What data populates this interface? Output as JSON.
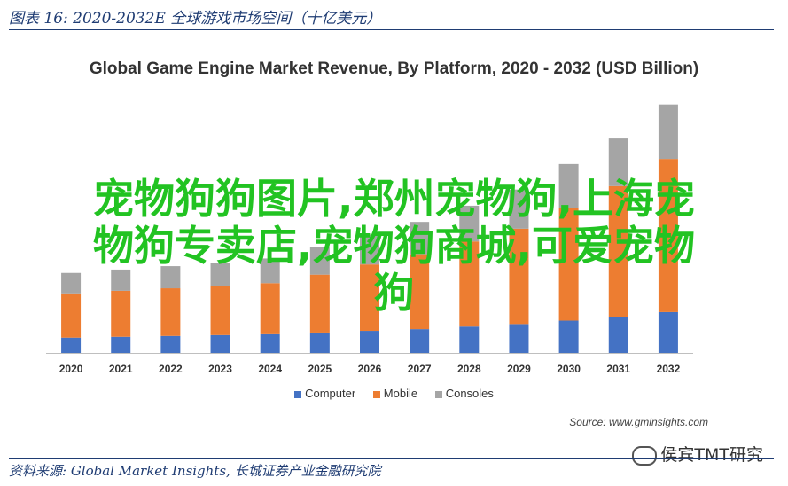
{
  "figure_title": "图表 16:  2020-2032E 全球游戏市场空间（十亿美元）",
  "footer_source": "资料来源:  Global Market Insights,  长城证券产业金融研究院",
  "source_note": "Source: www.gminsights.com",
  "wechat_label": "侯宾TMT研究",
  "overlay_text": [
    "宠物狗狗图片,郑州宠物狗,上海宠",
    "物狗专卖店,宠物狗商城,可爱宠物",
    "狗"
  ],
  "colors": {
    "computer": "#4472c4",
    "mobile": "#ed7d31",
    "consoles": "#a5a5a5",
    "rule": "#1f3c73",
    "overlay": "#22c322"
  },
  "chart_data": {
    "type": "bar",
    "stacked": true,
    "title": "Global Game Engine Market Revenue, By Platform, 2020 - 2032 (USD Billion)",
    "categories": [
      "2020",
      "2021",
      "2022",
      "2023",
      "2024",
      "2025",
      "2026",
      "2027",
      "2028",
      "2029",
      "2030",
      "2031",
      "2032"
    ],
    "series": [
      {
        "name": "Computer",
        "values": [
          0.9,
          0.95,
          1.0,
          1.05,
          1.1,
          1.2,
          1.3,
          1.4,
          1.55,
          1.7,
          1.9,
          2.1,
          2.4
        ]
      },
      {
        "name": "Mobile",
        "values": [
          2.6,
          2.7,
          2.8,
          2.9,
          3.0,
          3.4,
          3.9,
          4.4,
          5.0,
          5.6,
          6.6,
          7.7,
          9.0
        ]
      },
      {
        "name": "Consoles",
        "values": [
          1.2,
          1.25,
          1.3,
          1.35,
          1.45,
          1.6,
          1.75,
          1.9,
          2.1,
          2.3,
          2.6,
          2.8,
          3.2
        ]
      }
    ],
    "ylim": [
      0,
      15
    ],
    "grid": false,
    "legend_position": "bottom"
  }
}
